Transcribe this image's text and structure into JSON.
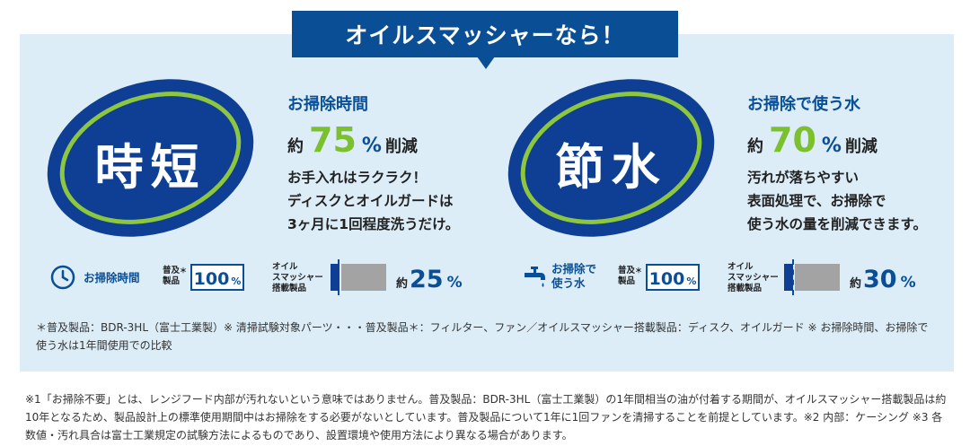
{
  "banner": {
    "text": "オイルスマッシャーなら！"
  },
  "left": {
    "badge": "時短",
    "heading": "お掃除時間",
    "pct_prefix": "約",
    "pct_value": "75",
    "pct_unit": "%",
    "pct_suffix": "削減",
    "desc": [
      "お手入れはラクラク！",
      "ディスクとオイルガードは",
      "3ヶ月に1回程度洗うだけ。"
    ],
    "compare": {
      "icon": "clock-icon",
      "label": "お掃除時間",
      "standard_label_line1": "普及",
      "standard_label_line2": "製品",
      "standard_mark": "＊",
      "standard_value": "100",
      "standard_unit": "%",
      "product_label": [
        "オイル",
        "スマッシャー",
        "搭載製品"
      ],
      "result_prefix": "約",
      "result_value": "25",
      "result_unit": "%",
      "level": 0.25
    }
  },
  "right": {
    "badge": "節水",
    "heading": "お掃除で使う水",
    "pct_prefix": "約",
    "pct_value": "70",
    "pct_unit": "%",
    "pct_suffix": "削減",
    "desc": [
      "汚れが落ちやすい",
      "表面処理で、お掃除で",
      "使う水の量を削減できます。"
    ],
    "compare": {
      "icon": "faucet-icon",
      "label_line1": "お掃除で",
      "label_line2": "使う水",
      "standard_label_line1": "普及",
      "standard_label_line2": "製品",
      "standard_mark": "＊",
      "standard_value": "100",
      "standard_unit": "%",
      "product_label": [
        "オイル",
        "スマッシャー",
        "搭載製品"
      ],
      "result_prefix": "約",
      "result_value": "30",
      "result_unit": "%",
      "level": 0.3
    }
  },
  "footnote": "＊普及製品：BDR-3HL（富士工業製）※ 清掃試験対象パーツ・・・普及製品＊：フィルター、ファン／オイルスマッシャー搭載製品：ディスク、オイルガード ※ お掃除時間、お掃除で使う水は1年間使用での比較",
  "bottom_note": "※1「お掃除不要」とは、レンジフード内部が汚れないという意味ではありません。普及製品：BDR-3HL（富士工業製）の1年間相当の油が付着する期間が、オイルスマッシャー搭載製品は約10年となるため、製品設計上の標準使用期間中はお掃除をする必要がないとしています。普及製品について1年に1回ファンを清掃することを前提としています。※2 内部：ケーシング ※3 各数値・汚れ具合は富士工業規定の試験方法によるものであり、設置環境や使用方法により異なる場合があります。",
  "colors": {
    "navy": "#0a4f96",
    "green": "#7cc030",
    "panel": "#dcedf8",
    "gray": "#a3a3a3"
  }
}
